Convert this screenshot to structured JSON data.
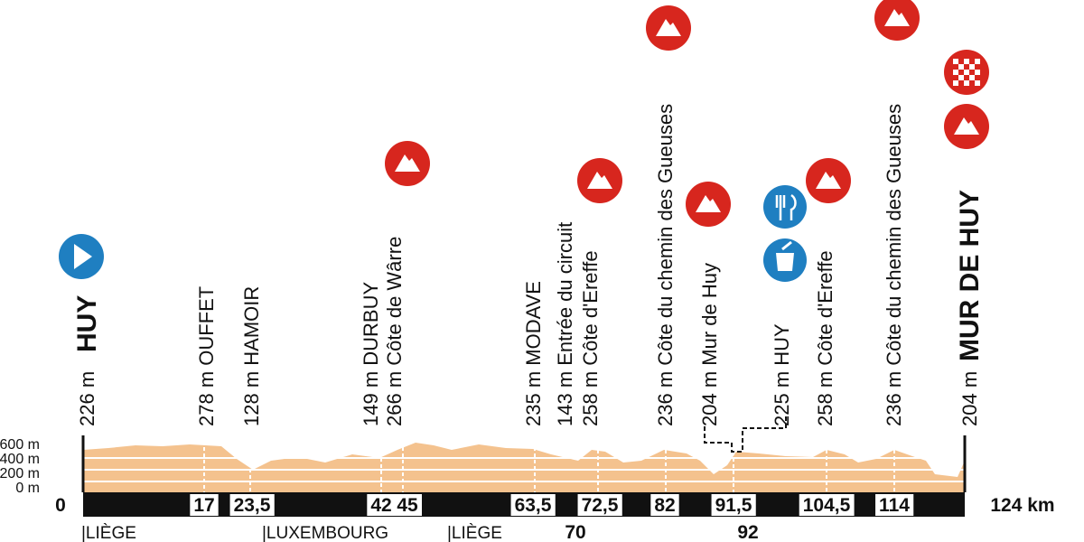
{
  "start": {
    "altitude": "226 m",
    "name": "HUY"
  },
  "finish": {
    "altitude": "204 m",
    "name": "MUR DE HUY"
  },
  "waypoints": [
    {
      "label": "278 m OUFFET"
    },
    {
      "label": "128 m HAMOIR"
    },
    {
      "label": "149 m DURBUY"
    },
    {
      "label": "266 m Côte de Wârre"
    },
    {
      "label": "235 m MODAVE"
    },
    {
      "label": "143 m Entrée du circuit"
    },
    {
      "label": "258 m Côte d'Ereffe"
    },
    {
      "label": "236 m Côte du chemin des Gueuses"
    },
    {
      "label": "204 m Mur de Huy"
    },
    {
      "label": "225 m HUY"
    },
    {
      "label": "258 m Côte d'Ereffe"
    },
    {
      "label": "236 m Côte du chemin des Gueuses"
    }
  ],
  "altitude_axis": [
    "600 m",
    "400 m",
    "200 m",
    "0 m"
  ],
  "km_markers": [
    "0",
    "17",
    "23,5",
    "42",
    "45",
    "63,5",
    "72,5",
    "82",
    "91,5",
    "104,5",
    "114",
    "124 km"
  ],
  "circuit_km": [
    "70",
    "92"
  ],
  "provinces": [
    "|LIÈGE",
    "|LUXEMBOURG",
    "|LIÈGE"
  ]
}
